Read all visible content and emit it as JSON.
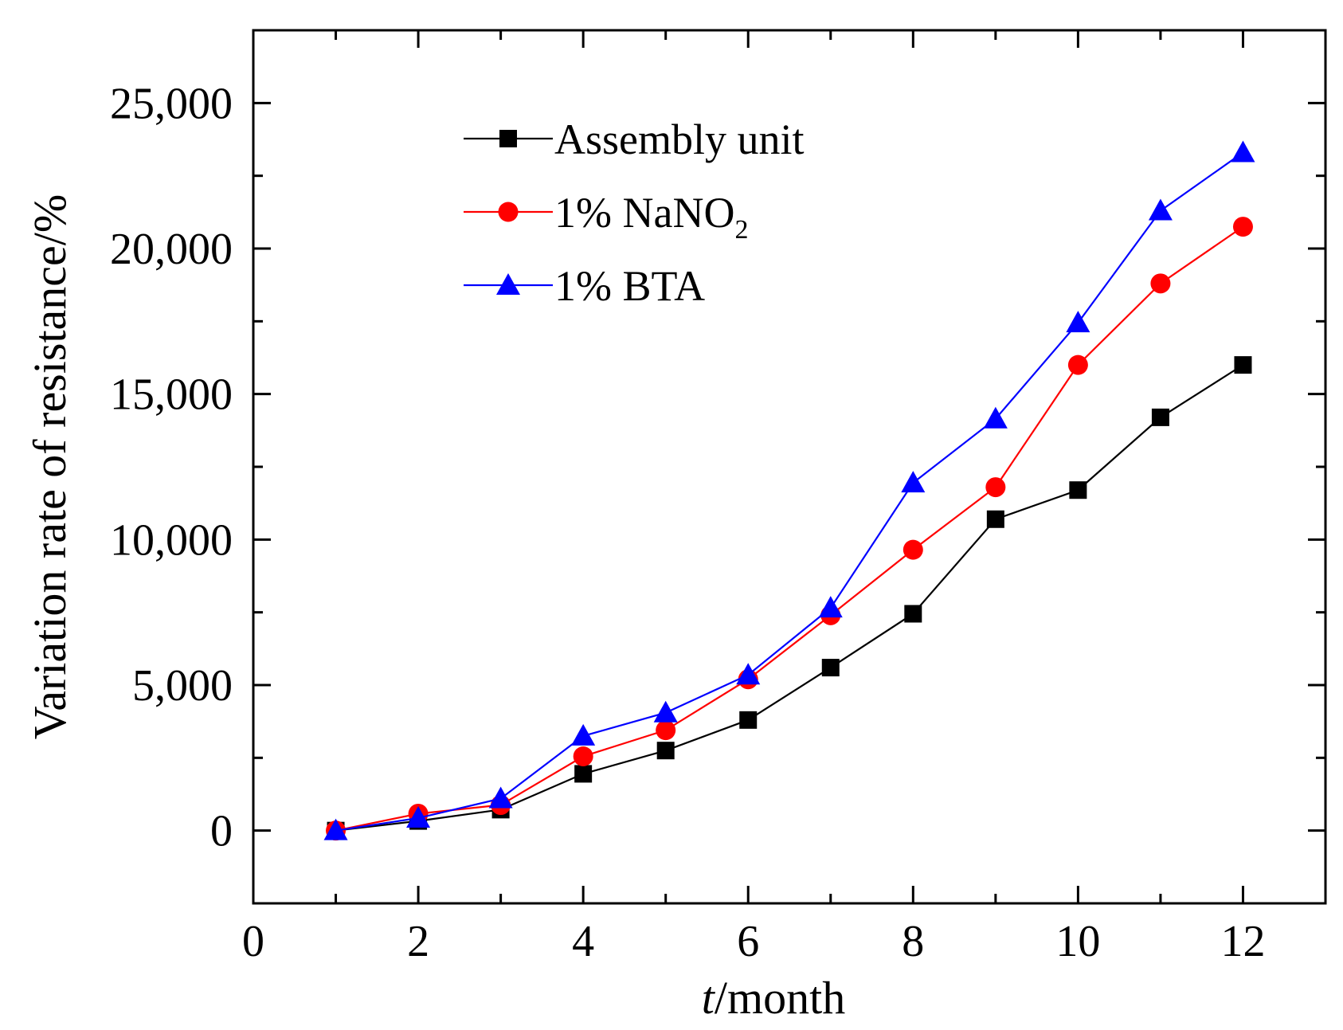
{
  "chart_data": {
    "type": "line",
    "title": "",
    "xlabel_italic": "t",
    "xlabel_rest": "/month",
    "ylabel": "Variation rate of resistance/%",
    "xlim": [
      0,
      13
    ],
    "ylim": [
      -2500,
      27500
    ],
    "x_ticks": [
      0,
      2,
      4,
      6,
      8,
      10,
      12
    ],
    "x_tick_labels": [
      "0",
      "2",
      "4",
      "6",
      "8",
      "10",
      "12"
    ],
    "y_ticks": [
      0,
      5000,
      10000,
      15000,
      20000,
      25000
    ],
    "y_tick_labels": [
      "0",
      "5,000",
      "10,000",
      "15,000",
      "20,000",
      "25,000"
    ],
    "x": [
      1,
      2,
      3,
      4,
      5,
      6,
      7,
      8,
      9,
      10,
      11,
      12
    ],
    "series": [
      {
        "name": "Assembly unit",
        "color": "#000000",
        "marker": "square",
        "values": [
          0,
          330,
          720,
          1950,
          2750,
          3800,
          5600,
          7450,
          10700,
          11700,
          14200,
          16000
        ]
      },
      {
        "name": "1% NaNO",
        "name_subscript": "2",
        "color": "#ff0000",
        "marker": "circle",
        "values": [
          0,
          580,
          880,
          2550,
          3450,
          5200,
          7400,
          9650,
          11800,
          16000,
          18800,
          20750
        ]
      },
      {
        "name": "1% BTA",
        "color": "#0000ff",
        "marker": "triangle",
        "values": [
          0,
          430,
          1100,
          3250,
          4050,
          5350,
          7650,
          11950,
          14150,
          17450,
          21300,
          23300
        ]
      }
    ],
    "legend_position": "top-left"
  }
}
